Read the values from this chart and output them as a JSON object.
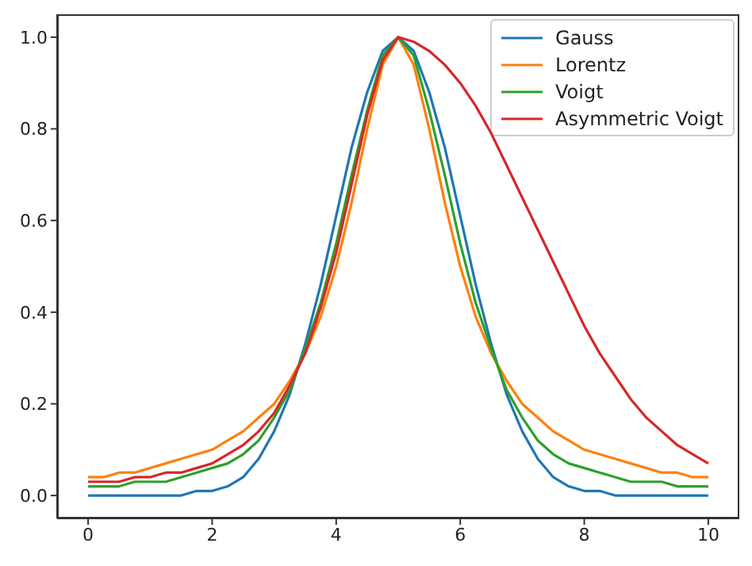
{
  "chart_data": {
    "type": "line",
    "x": [
      0,
      0.25,
      0.5,
      0.75,
      1,
      1.25,
      1.5,
      1.75,
      2,
      2.25,
      2.5,
      2.75,
      3,
      3.25,
      3.5,
      3.75,
      4,
      4.25,
      4.5,
      4.75,
      5,
      5.25,
      5.5,
      5.75,
      6,
      6.25,
      6.5,
      6.75,
      7,
      7.25,
      7.5,
      7.75,
      8,
      8.25,
      8.5,
      8.75,
      9,
      9.25,
      9.5,
      9.75,
      10
    ],
    "series": [
      {
        "name": "Gauss",
        "color": "#1f77b4",
        "values": [
          0,
          0,
          0,
          0,
          0,
          0,
          0,
          0.01,
          0.01,
          0.02,
          0.04,
          0.08,
          0.14,
          0.22,
          0.33,
          0.46,
          0.61,
          0.76,
          0.88,
          0.97,
          1,
          0.97,
          0.88,
          0.76,
          0.61,
          0.46,
          0.33,
          0.22,
          0.14,
          0.08,
          0.04,
          0.02,
          0.01,
          0.01,
          0,
          0,
          0,
          0,
          0,
          0,
          0
        ]
      },
      {
        "name": "Lorentz",
        "color": "#ff7f0e",
        "values": [
          0.04,
          0.04,
          0.05,
          0.05,
          0.06,
          0.07,
          0.08,
          0.09,
          0.1,
          0.12,
          0.14,
          0.17,
          0.2,
          0.25,
          0.31,
          0.39,
          0.5,
          0.64,
          0.8,
          0.94,
          1,
          0.94,
          0.8,
          0.64,
          0.5,
          0.39,
          0.31,
          0.25,
          0.2,
          0.17,
          0.14,
          0.12,
          0.1,
          0.09,
          0.08,
          0.07,
          0.06,
          0.05,
          0.05,
          0.04,
          0.04
        ]
      },
      {
        "name": "Voigt",
        "color": "#2ca02c",
        "values": [
          0.02,
          0.02,
          0.02,
          0.03,
          0.03,
          0.03,
          0.04,
          0.05,
          0.06,
          0.07,
          0.09,
          0.12,
          0.17,
          0.23,
          0.32,
          0.42,
          0.55,
          0.7,
          0.84,
          0.96,
          1,
          0.96,
          0.84,
          0.7,
          0.55,
          0.42,
          0.32,
          0.23,
          0.17,
          0.12,
          0.09,
          0.07,
          0.06,
          0.05,
          0.04,
          0.03,
          0.03,
          0.03,
          0.02,
          0.02,
          0.02
        ]
      },
      {
        "name": "Asymmetric Voigt",
        "color": "#d62728",
        "values": [
          0.03,
          0.03,
          0.03,
          0.04,
          0.04,
          0.05,
          0.05,
          0.06,
          0.07,
          0.09,
          0.11,
          0.14,
          0.18,
          0.24,
          0.31,
          0.41,
          0.53,
          0.68,
          0.83,
          0.95,
          1,
          0.99,
          0.97,
          0.94,
          0.9,
          0.85,
          0.79,
          0.72,
          0.65,
          0.58,
          0.51,
          0.44,
          0.37,
          0.31,
          0.26,
          0.21,
          0.17,
          0.14,
          0.11,
          0.09,
          0.07
        ]
      }
    ],
    "xlim": [
      -0.5,
      10.5
    ],
    "xticks": [
      0,
      2,
      4,
      6,
      8,
      10
    ],
    "ylim": [
      -0.05,
      1.05
    ],
    "yticks": [
      {
        "value": 0,
        "label": "0.0"
      },
      0.2,
      0.4,
      0.6,
      0.8,
      {
        "value": 1,
        "label": "1.0"
      }
    ],
    "legend": "top right",
    "grid": false,
    "marker": "none",
    "line_style": "solid"
  }
}
